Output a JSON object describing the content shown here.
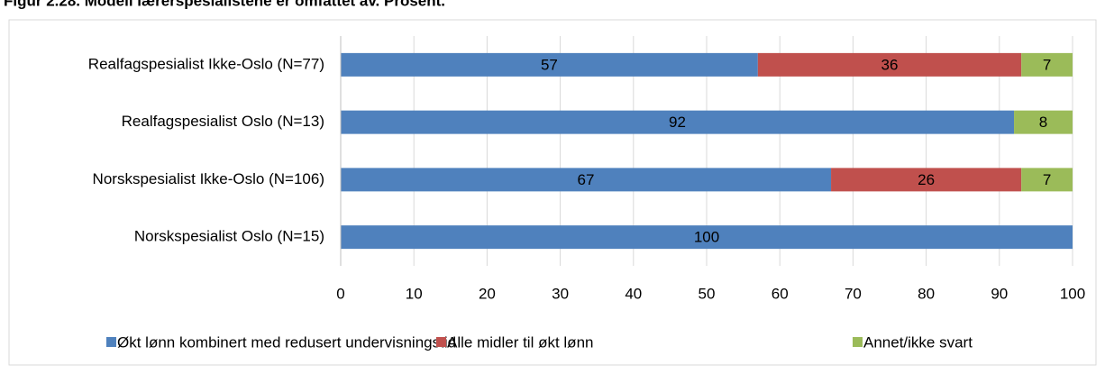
{
  "chart_data": {
    "type": "stacked-bar-horizontal",
    "title": "Figur 2.28. Modell lærerspesialistene er omfattet av. Prosent.",
    "categories": [
      "Realfagspesialist Ikke-Oslo (N=77)",
      "Realfagspesialist Oslo (N=13)",
      "Norskspesialist Ikke-Oslo (N=106)",
      "Norskspesialist Oslo (N=15)"
    ],
    "series": [
      {
        "name": "Økt lønn kombinert med redusert undervisningstid",
        "color": "#4f81bd",
        "values": [
          57,
          92,
          67,
          100
        ]
      },
      {
        "name": "Alle midler til økt lønn",
        "color": "#c0504d",
        "values": [
          36,
          null,
          26,
          null
        ]
      },
      {
        "name": "Annet/ikke svart",
        "color": "#9bbb59",
        "values": [
          7,
          8,
          7,
          null
        ]
      }
    ],
    "xlim": [
      0,
      100
    ],
    "xticks": [
      0,
      10,
      20,
      30,
      40,
      50,
      60,
      70,
      80,
      90,
      100
    ],
    "grid": true,
    "legend": "bottom"
  }
}
